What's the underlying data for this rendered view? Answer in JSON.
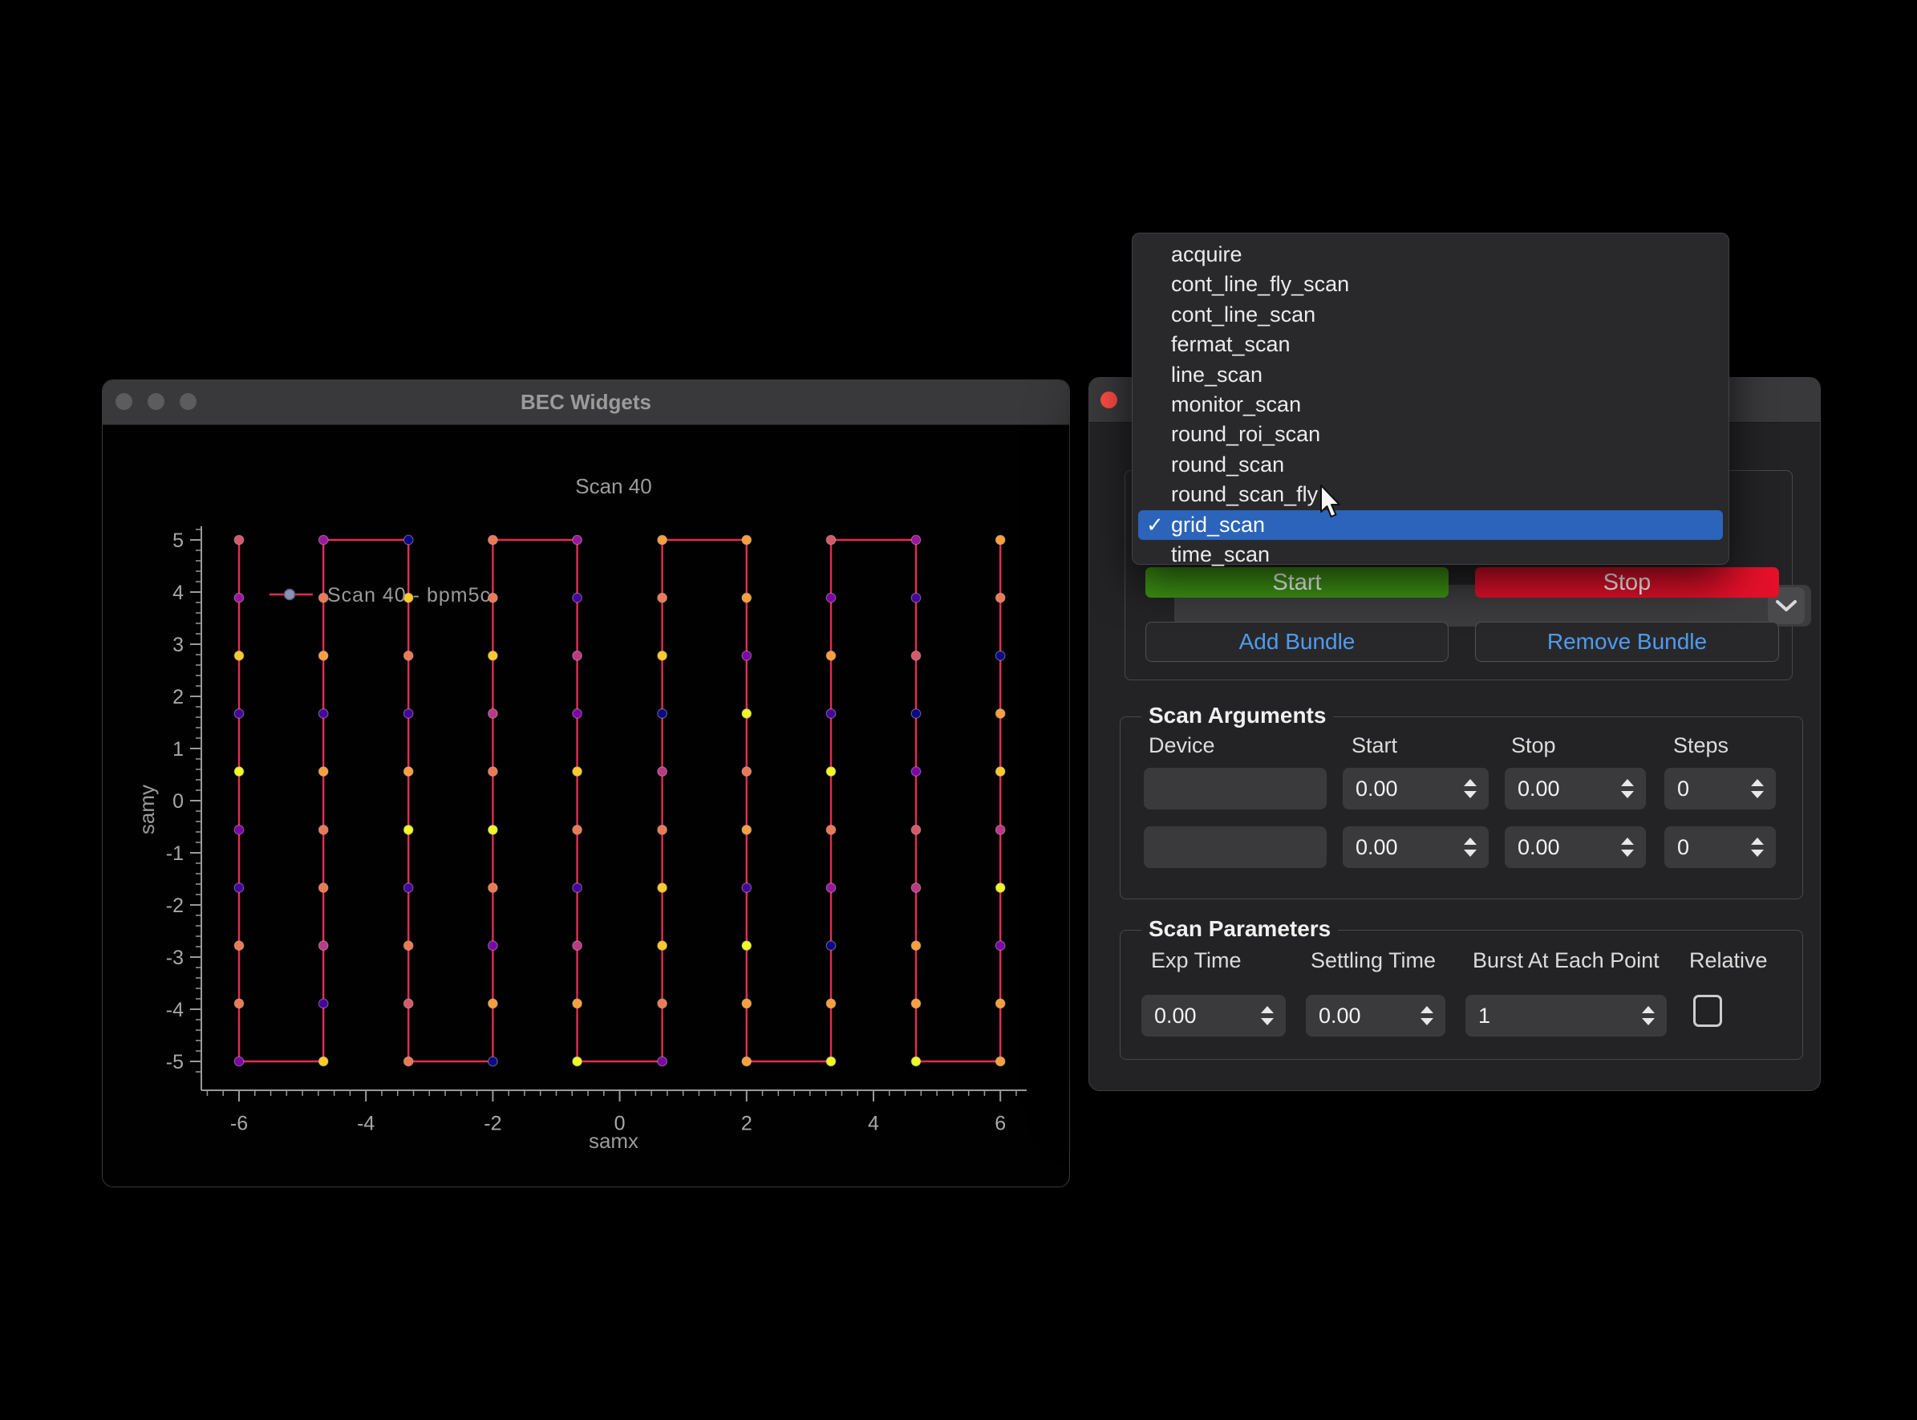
{
  "left_window": {
    "title": "BEC Widgets",
    "traffic_lights": [
      "close",
      "minimize",
      "zoom"
    ]
  },
  "chart_data": {
    "type": "scatter",
    "title": "Scan 40",
    "xlabel": "samx",
    "ylabel": "samy",
    "legend": [
      {
        "label": "Scan 40 - bpm5c",
        "marker_color": "#8a92b8",
        "line_color": "#e22e52"
      }
    ],
    "x_ticks": [
      -6,
      -4,
      -2,
      0,
      2,
      4,
      6
    ],
    "y_ticks": [
      5,
      4,
      3,
      2,
      1,
      0,
      -1,
      -2,
      -3,
      -4,
      -5
    ],
    "x_minor_step": 0.25,
    "y_minor_step": 0.2,
    "xlim": [
      -6.6,
      6.45
    ],
    "ylim": [
      -5.55,
      5.26
    ],
    "grid": false,
    "legend_position": "upper-left-inside",
    "line_color": "#e22e52",
    "marker_palette": {
      "P0": "#0d0887",
      "P1": "#46039f",
      "P2": "#7e03a8",
      "P3": "#9c179e",
      "P4": "#bd3786",
      "P5": "#d8576b",
      "P6": "#ed7953",
      "P7": "#fb9f3a",
      "P8": "#fdca26",
      "P9": "#f0f921"
    },
    "x_values": [
      -6,
      -4.67,
      -3.33,
      -2,
      -0.67,
      0.67,
      2,
      3.33,
      4.67,
      6
    ],
    "y_values": [
      5,
      3.89,
      2.78,
      1.67,
      0.56,
      -0.56,
      -1.67,
      -2.78,
      -3.89,
      -5
    ],
    "path_style": "serpentine-columns-starting-top-left",
    "colors_grid_by_column_top_to_bottom": [
      [
        "P5",
        "P3",
        "P8",
        "P1",
        "P9",
        "P2",
        "P1",
        "P6",
        "P6",
        "P2"
      ],
      [
        "P3",
        "P6",
        "P7",
        "P1",
        "P7",
        "P6",
        "P6",
        "P4",
        "P1",
        "P8"
      ],
      [
        "P0",
        "P8",
        "P6",
        "P1",
        "P7",
        "P9",
        "P1",
        "P6",
        "P5",
        "P6"
      ],
      [
        "P6",
        "P6",
        "P8",
        "P4",
        "P6",
        "P9",
        "P6",
        "P2",
        "P7",
        "P0"
      ],
      [
        "P3",
        "P1",
        "P4",
        "P2",
        "P8",
        "P6",
        "P1",
        "P4",
        "P7",
        "P9"
      ],
      [
        "P7",
        "P6",
        "P8",
        "P0",
        "P4",
        "P6",
        "P8",
        "P8",
        "P6",
        "P2"
      ],
      [
        "P7",
        "P7",
        "P2",
        "P9",
        "P6",
        "P7",
        "P1",
        "P9",
        "P7",
        "P7"
      ],
      [
        "P5",
        "P2",
        "P7",
        "P1",
        "P9",
        "P6",
        "P3",
        "P0",
        "P7",
        "P9"
      ],
      [
        "P3",
        "P1",
        "P5",
        "P0",
        "P2",
        "P5",
        "P4",
        "P7",
        "P7",
        "P9"
      ],
      [
        "P7",
        "P6",
        "P0",
        "P7",
        "P8",
        "P4",
        "P9",
        "P2",
        "P7",
        "P7"
      ]
    ],
    "axis_color": "#9a9a9a",
    "tick_label_color": "#a8a8a8",
    "title_color": "#9c9c9c"
  },
  "dropdown": {
    "items": [
      "acquire",
      "cont_line_fly_scan",
      "cont_line_scan",
      "fermat_scan",
      "line_scan",
      "monitor_scan",
      "round_roi_scan",
      "round_scan",
      "round_scan_fly",
      "grid_scan",
      "time_scan"
    ],
    "selected": "grid_scan",
    "selected_index": 9,
    "checkmark": "✓",
    "highlight_color": "#2b64ba"
  },
  "right_window": {
    "combo": {
      "value": "grid_scan",
      "icon": "chevron-down"
    },
    "buttons": {
      "start_label": "Start",
      "stop_label": "Stop",
      "add_bundle_label": "Add Bundle",
      "remove_bundle_label": "Remove Bundle",
      "start_color": "#3e9414",
      "stop_color": "#e5102a",
      "bundle_text_color": "#4f9bf0"
    },
    "scan_arguments": {
      "group_label": "Scan Arguments",
      "headers": [
        "Device",
        "Start",
        "Stop",
        "Steps"
      ],
      "rows": [
        {
          "device": "",
          "start": "0.00",
          "stop": "0.00",
          "steps": "0"
        },
        {
          "device": "",
          "start": "0.00",
          "stop": "0.00",
          "steps": "0"
        }
      ]
    },
    "scan_parameters": {
      "group_label": "Scan Parameters",
      "headers": [
        "Exp Time",
        "Settling Time",
        "Burst At Each Point",
        "Relative"
      ],
      "exp_time": "0.00",
      "settling_time": "0.00",
      "burst_at_each_point": "1",
      "relative_checked": false
    }
  }
}
